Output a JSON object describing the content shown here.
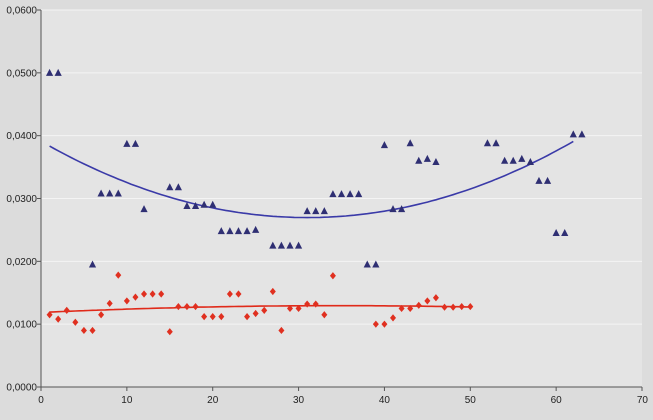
{
  "colors": {
    "background": "#dcdcdc",
    "plot_background": "#e4e4e4",
    "gridline": "#f4f4f4",
    "axis": "#555555",
    "series_blue": "#2f2f73",
    "series_red": "#e03020",
    "trend_blue": "#3a3aa8",
    "trend_red": "#e02a1a"
  },
  "chart_data": {
    "type": "scatter",
    "title": "",
    "xlabel": "",
    "ylabel": "",
    "xlim": [
      0,
      70
    ],
    "ylim": [
      0,
      0.06
    ],
    "x_ticks": [
      {
        "value": 0,
        "label": "0"
      },
      {
        "value": 10,
        "label": "10"
      },
      {
        "value": 20,
        "label": "20"
      },
      {
        "value": 30,
        "label": "30"
      },
      {
        "value": 40,
        "label": "40"
      },
      {
        "value": 50,
        "label": "50"
      },
      {
        "value": 60,
        "label": "60"
      },
      {
        "value": 70,
        "label": "70"
      }
    ],
    "y_ticks": [
      {
        "value": 0,
        "label": "0,0000"
      },
      {
        "value": 0.01,
        "label": "0,0100"
      },
      {
        "value": 0.02,
        "label": "0,0200"
      },
      {
        "value": 0.03,
        "label": "0,0300"
      },
      {
        "value": 0.04,
        "label": "0,0400"
      },
      {
        "value": 0.05,
        "label": "0,0500"
      },
      {
        "value": 0.06,
        "label": "0,0600"
      }
    ],
    "grid": "horizontal",
    "legend": "none",
    "series": [
      {
        "marker": "triangle",
        "color": "#2f2f73",
        "points": [
          [
            1,
            0.05
          ],
          [
            2,
            0.05
          ],
          [
            6,
            0.0195
          ],
          [
            7,
            0.0308
          ],
          [
            8,
            0.0308
          ],
          [
            9,
            0.0308
          ],
          [
            10,
            0.0387
          ],
          [
            11,
            0.0387
          ],
          [
            12,
            0.0283
          ],
          [
            15,
            0.0318
          ],
          [
            16,
            0.0318
          ],
          [
            17,
            0.0288
          ],
          [
            18,
            0.0288
          ],
          [
            19,
            0.029
          ],
          [
            20,
            0.029
          ],
          [
            21,
            0.0248
          ],
          [
            22,
            0.0248
          ],
          [
            23,
            0.0248
          ],
          [
            24,
            0.0248
          ],
          [
            25,
            0.025
          ],
          [
            27,
            0.0225
          ],
          [
            28,
            0.0225
          ],
          [
            29,
            0.0225
          ],
          [
            30,
            0.0225
          ],
          [
            31,
            0.028
          ],
          [
            32,
            0.028
          ],
          [
            33,
            0.028
          ],
          [
            34,
            0.0307
          ],
          [
            35,
            0.0307
          ],
          [
            36,
            0.0307
          ],
          [
            37,
            0.0307
          ],
          [
            38,
            0.0195
          ],
          [
            39,
            0.0195
          ],
          [
            40,
            0.0385
          ],
          [
            41,
            0.0283
          ],
          [
            42,
            0.0283
          ],
          [
            43,
            0.0388
          ],
          [
            44,
            0.036
          ],
          [
            45,
            0.0363
          ],
          [
            46,
            0.0358
          ],
          [
            52,
            0.0388
          ],
          [
            53,
            0.0388
          ],
          [
            54,
            0.036
          ],
          [
            55,
            0.036
          ],
          [
            56,
            0.0363
          ],
          [
            57,
            0.0358
          ],
          [
            58,
            0.0328
          ],
          [
            59,
            0.0328
          ],
          [
            60,
            0.0245
          ],
          [
            61,
            0.0245
          ],
          [
            62,
            0.0402
          ],
          [
            63,
            0.0402
          ]
        ]
      },
      {
        "marker": "diamond",
        "color": "#e03020",
        "points": [
          [
            1,
            0.0115
          ],
          [
            2,
            0.0108
          ],
          [
            3,
            0.0122
          ],
          [
            4,
            0.0103
          ],
          [
            5,
            0.009
          ],
          [
            6,
            0.009
          ],
          [
            7,
            0.0115
          ],
          [
            8,
            0.0133
          ],
          [
            9,
            0.0178
          ],
          [
            10,
            0.0137
          ],
          [
            11,
            0.0143
          ],
          [
            12,
            0.0148
          ],
          [
            13,
            0.0148
          ],
          [
            14,
            0.0148
          ],
          [
            15,
            0.0088
          ],
          [
            16,
            0.0128
          ],
          [
            17,
            0.0128
          ],
          [
            18,
            0.0128
          ],
          [
            19,
            0.0112
          ],
          [
            20,
            0.0112
          ],
          [
            21,
            0.0112
          ],
          [
            22,
            0.0148
          ],
          [
            23,
            0.0148
          ],
          [
            24,
            0.0112
          ],
          [
            25,
            0.0117
          ],
          [
            26,
            0.0122
          ],
          [
            27,
            0.0152
          ],
          [
            28,
            0.009
          ],
          [
            29,
            0.0125
          ],
          [
            30,
            0.0125
          ],
          [
            31,
            0.0132
          ],
          [
            32,
            0.0132
          ],
          [
            33,
            0.0115
          ],
          [
            34,
            0.0177
          ],
          [
            39,
            0.01
          ],
          [
            40,
            0.01
          ],
          [
            41,
            0.011
          ],
          [
            42,
            0.0125
          ],
          [
            43,
            0.0125
          ],
          [
            44,
            0.013
          ],
          [
            45,
            0.0137
          ],
          [
            46,
            0.0142
          ],
          [
            47,
            0.0127
          ],
          [
            48,
            0.0127
          ],
          [
            49,
            0.0128
          ],
          [
            50,
            0.0128
          ]
        ]
      }
    ],
    "trendlines": [
      {
        "color": "#3a3aa8",
        "x_range": [
          1,
          62
        ],
        "coeffs": [
          0.03911,
          -0.0007829,
          1.262e-05
        ]
      },
      {
        "color": "#e02a1a",
        "x_range": [
          1,
          50
        ],
        "coeffs": [
          0.01186,
          6.25e-05,
          -9e-07
        ]
      }
    ]
  }
}
